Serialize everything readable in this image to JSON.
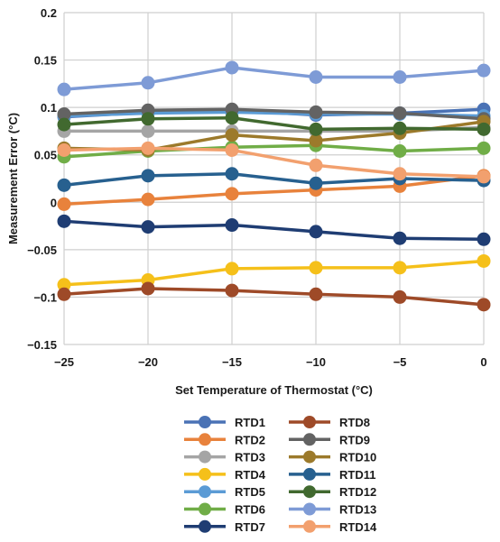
{
  "chart_data": {
    "type": "line",
    "xlabel": "Set Temperature of Thermostat (°C)",
    "ylabel": "Measurement Error (°C)",
    "x": [
      -25,
      -20,
      -15,
      -10,
      -5,
      0
    ],
    "x_tick_labels": [
      "−25",
      "−20",
      "−15",
      "−10",
      "−5",
      "0"
    ],
    "y_ticks": [
      0.2,
      0.15,
      0.1,
      0.05,
      0,
      -0.05,
      -0.1,
      -0.15
    ],
    "y_tick_labels": [
      "0.2",
      "0.15",
      "0.1",
      "0.05",
      "0",
      "−0.05",
      "−0.1",
      "−0.15"
    ],
    "xlim": [
      -25,
      0
    ],
    "ylim": [
      -0.15,
      0.2
    ],
    "grid": true,
    "legend_position": "bottom",
    "series": [
      {
        "name": "RTD1",
        "color": "#4a72b5",
        "values": [
          0.09,
          0.095,
          0.097,
          0.092,
          0.094,
          0.098
        ]
      },
      {
        "name": "RTD2",
        "color": "#e8823c",
        "values": [
          -0.002,
          0.003,
          0.009,
          0.013,
          0.017,
          0.028
        ]
      },
      {
        "name": "RTD3",
        "color": "#a5a5a5",
        "values": [
          0.075,
          0.075,
          0.075,
          0.075,
          0.075,
          0.079
        ]
      },
      {
        "name": "RTD4",
        "color": "#f5c01a",
        "values": [
          -0.087,
          -0.082,
          -0.07,
          -0.069,
          -0.069,
          -0.062
        ]
      },
      {
        "name": "RTD5",
        "color": "#5b9bd5",
        "values": [
          0.091,
          0.094,
          0.095,
          0.093,
          0.093,
          0.091
        ]
      },
      {
        "name": "RTD6",
        "color": "#70ad47",
        "values": [
          0.048,
          0.054,
          0.058,
          0.06,
          0.054,
          0.057
        ]
      },
      {
        "name": "RTD7",
        "color": "#1f3d73",
        "values": [
          -0.02,
          -0.026,
          -0.024,
          -0.031,
          -0.038,
          -0.039
        ]
      },
      {
        "name": "RTD8",
        "color": "#9e4a28",
        "values": [
          -0.097,
          -0.091,
          -0.093,
          -0.097,
          -0.1,
          -0.108
        ]
      },
      {
        "name": "RTD9",
        "color": "#636363",
        "values": [
          0.093,
          0.097,
          0.098,
          0.095,
          0.094,
          0.088
        ]
      },
      {
        "name": "RTD10",
        "color": "#9c7a2b",
        "values": [
          0.057,
          0.055,
          0.071,
          0.065,
          0.073,
          0.085
        ]
      },
      {
        "name": "RTD11",
        "color": "#27608f",
        "values": [
          0.018,
          0.028,
          0.03,
          0.02,
          0.025,
          0.023
        ]
      },
      {
        "name": "RTD12",
        "color": "#41692f",
        "values": [
          0.082,
          0.088,
          0.089,
          0.077,
          0.078,
          0.077
        ]
      },
      {
        "name": "RTD13",
        "color": "#7e9bd6",
        "values": [
          0.119,
          0.126,
          0.142,
          0.132,
          0.132,
          0.139
        ]
      },
      {
        "name": "RTD14",
        "color": "#f2a06e",
        "values": [
          0.055,
          0.057,
          0.055,
          0.039,
          0.03,
          0.027
        ]
      }
    ]
  }
}
